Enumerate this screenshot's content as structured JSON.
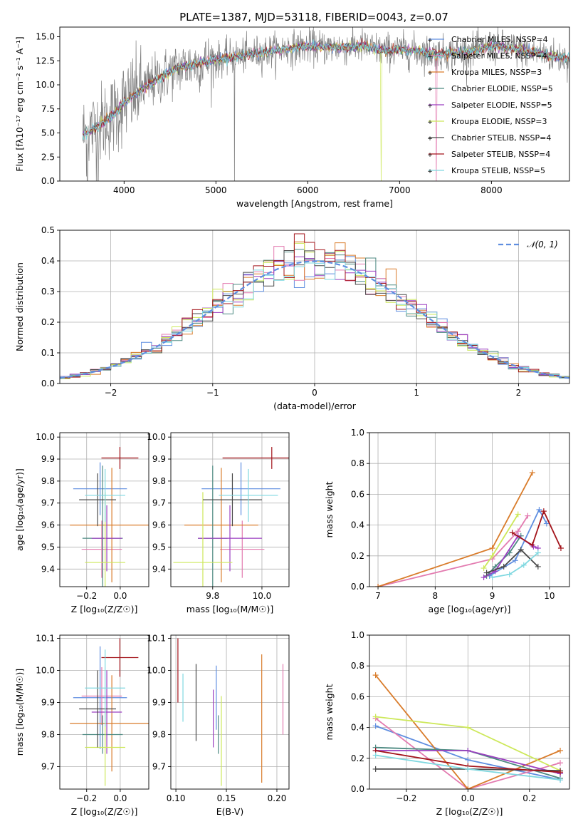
{
  "figure_title": "PLATE=1387, MJD=53118, FIBERID=0043, z=0.07",
  "colors": {
    "chabrier_miles": "#5f8ee0",
    "salpeter_miles": "#e37bb0",
    "kroupa_miles": "#d97c2b",
    "chabrier_elodie": "#4d8a82",
    "salpeter_elodie": "#9b3fc0",
    "kroupa_elodie": "#cde85a",
    "chabrier_stelib": "#4a4a4a",
    "salpeter_stelib": "#a3141b",
    "kroupa_stelib": "#7fd8e0",
    "data_spectrum": "#808080",
    "normal_curve": "#5f8ee0"
  },
  "chart_data": [
    {
      "id": "spectrum",
      "type": "line",
      "title": "PLATE=1387, MJD=53118, FIBERID=0043, z=0.07",
      "xlabel": "wavelength [Angstrom, rest frame]",
      "ylabel": "Flux [fλ10⁻¹⁷ erg cm⁻² s⁻¹ A⁻¹]",
      "xlim": [
        3300,
        8850
      ],
      "ylim": [
        0,
        16
      ],
      "xticks": [
        4000,
        5000,
        6000,
        7000,
        8000
      ],
      "yticks": [
        0.0,
        2.5,
        5.0,
        7.5,
        10.0,
        12.5,
        15.0
      ],
      "grid": false,
      "legend_position": "right",
      "legend": [
        "Chabrier MILES, NSSP=4",
        "Salpeter MILES, NSSP=4",
        "Kroupa MILES, NSSP=3",
        "Chabrier ELODIE, NSSP=5",
        "Salpeter ELODIE, NSSP=5",
        "Kroupa ELODIE, NSSP=3",
        "Chabrier STELIB, NSSP=4",
        "Salpeter STELIB, NSSP=4",
        "Kroupa STELIB, NSSP=5"
      ],
      "continuum": {
        "x": [
          3550,
          3700,
          3900,
          4000,
          4200,
          4400,
          4600,
          4800,
          5000,
          5200,
          5400,
          5600,
          5800,
          6000,
          6200,
          6400,
          6600,
          6800,
          7000,
          7200,
          7400,
          7600,
          7800,
          8000,
          8200,
          8400,
          8600,
          8800
        ],
        "y": [
          4.8,
          5.6,
          7.0,
          8.2,
          9.6,
          10.8,
          11.8,
          12.2,
          12.6,
          12.9,
          13.2,
          13.5,
          13.8,
          14.0,
          13.9,
          13.9,
          14.0,
          13.6,
          13.6,
          13.5,
          13.2,
          13.3,
          13.5,
          14.0,
          13.8,
          13.5,
          13.1,
          12.8
        ]
      }
    },
    {
      "id": "residuals",
      "type": "bar",
      "xlabel": "(data-model)/error",
      "ylabel": "Normed distribution",
      "xlim": [
        -2.5,
        2.5
      ],
      "ylim": [
        0,
        0.5
      ],
      "xticks": [
        -2,
        -1,
        0,
        1,
        2
      ],
      "yticks": [
        0.0,
        0.1,
        0.2,
        0.3,
        0.4,
        0.5
      ],
      "grid": true,
      "legend_position": "top-right",
      "legend": [
        "𝒩(0, 1)"
      ],
      "bin_width": 0.1,
      "bin_start": -2.5
    },
    {
      "id": "age-vs-z",
      "type": "scatter",
      "xlabel": "Z [log₁₀(Z/Z☉)]",
      "ylabel": "age  [log₁₀(age/yr)]",
      "xlim": [
        -0.36,
        0.17
      ],
      "ylim": [
        9.32,
        10.02
      ],
      "xticks": [
        -0.2,
        0.0
      ],
      "yticks": [
        9.4,
        9.5,
        9.6,
        9.7,
        9.8,
        9.9,
        10.0
      ],
      "grid": true,
      "points": [
        {
          "model": "chabrier_miles",
          "x": -0.12,
          "xerr": 0.16,
          "y": 9.765,
          "yerr": 0.12
        },
        {
          "model": "salpeter_miles",
          "x": -0.11,
          "xerr": 0.12,
          "y": 9.49,
          "yerr": 0.13
        },
        {
          "model": "kroupa_miles",
          "x": -0.05,
          "xerr": 0.25,
          "y": 9.6,
          "yerr": 0.26
        },
        {
          "model": "chabrier_elodie",
          "x": -0.105,
          "xerr": 0.12,
          "y": 9.54,
          "yerr": 0.33
        },
        {
          "model": "salpeter_elodie",
          "x": -0.08,
          "xerr": 0.09,
          "y": 9.54,
          "yerr": 0.15
        },
        {
          "model": "kroupa_elodie",
          "x": -0.09,
          "xerr": 0.12,
          "y": 9.43,
          "yerr": 0.32
        },
        {
          "model": "chabrier_stelib",
          "x": -0.135,
          "xerr": 0.11,
          "y": 9.715,
          "yerr": 0.12
        },
        {
          "model": "salpeter_stelib",
          "x": -0.002,
          "xerr": 0.11,
          "y": 9.905,
          "yerr": 0.05
        },
        {
          "model": "kroupa_stelib",
          "x": -0.09,
          "xerr": 0.12,
          "y": 9.735,
          "yerr": 0.12
        }
      ]
    },
    {
      "id": "age-vs-mass",
      "type": "scatter",
      "xlabel": "mass [log₁₀(M/M☉)]",
      "ylabel": "",
      "xlim": [
        9.63,
        10.11
      ],
      "ylim": [
        9.32,
        10.02
      ],
      "xticks": [
        9.8,
        10.0
      ],
      "yticks": [
        9.4,
        9.5,
        9.6,
        9.7,
        9.8,
        9.9,
        10.0
      ],
      "grid": true,
      "points": [
        {
          "model": "chabrier_miles",
          "x": 9.915,
          "xerr": 0.16,
          "y": 9.765,
          "yerr": 0.12
        },
        {
          "model": "salpeter_miles",
          "x": 9.92,
          "xerr": 0.09,
          "y": 9.49,
          "yerr": 0.13
        },
        {
          "model": "kroupa_miles",
          "x": 9.835,
          "xerr": 0.15,
          "y": 9.6,
          "yerr": 0.26
        },
        {
          "model": "chabrier_elodie",
          "x": 9.8,
          "xerr": 0.06,
          "y": 9.54,
          "yerr": 0.33
        },
        {
          "model": "salpeter_elodie",
          "x": 9.87,
          "xerr": 0.13,
          "y": 9.54,
          "yerr": 0.15
        },
        {
          "model": "kroupa_elodie",
          "x": 9.76,
          "xerr": 0.12,
          "y": 9.43,
          "yerr": 0.32
        },
        {
          "model": "chabrier_stelib",
          "x": 9.88,
          "xerr": 0.12,
          "y": 9.715,
          "yerr": 0.12
        },
        {
          "model": "salpeter_stelib",
          "x": 10.04,
          "xerr": 0.2,
          "y": 9.905,
          "yerr": 0.05
        },
        {
          "model": "kroupa_stelib",
          "x": 9.945,
          "xerr": 0.12,
          "y": 9.735,
          "yerr": 0.12
        }
      ]
    },
    {
      "id": "massweight-vs-age",
      "type": "line",
      "xlabel": "age  [log₁₀(age/yr)]",
      "ylabel": "mass weight",
      "xlim": [
        6.85,
        10.35
      ],
      "ylim": [
        0,
        1.0
      ],
      "xticks": [
        7,
        8,
        9,
        10
      ],
      "yticks": [
        0.0,
        0.2,
        0.4,
        0.6,
        0.8,
        1.0
      ],
      "grid": true,
      "series": [
        {
          "model": "chabrier_miles",
          "x": [
            8.95,
            9.4,
            9.82,
            9.95
          ],
          "y": [
            0.07,
            0.17,
            0.5,
            0.41
          ]
        },
        {
          "model": "salpeter_miles",
          "x": [
            7.0,
            9.0,
            9.45,
            9.62
          ],
          "y": [
            0.0,
            0.18,
            0.36,
            0.46
          ]
        },
        {
          "model": "kroupa_miles",
          "x": [
            7.0,
            9.0,
            9.7
          ],
          "y": [
            0.0,
            0.25,
            0.74
          ]
        },
        {
          "model": "chabrier_elodie",
          "x": [
            8.9,
            9.05,
            9.3,
            9.5
          ],
          "y": [
            0.07,
            0.13,
            0.22,
            0.33
          ]
        },
        {
          "model": "salpeter_elodie",
          "x": [
            8.85,
            9.05,
            9.45,
            9.72,
            9.8
          ],
          "y": [
            0.06,
            0.1,
            0.33,
            0.26,
            0.25
          ]
        },
        {
          "model": "kroupa_elodie",
          "x": [
            8.85,
            9.0,
            9.45
          ],
          "y": [
            0.12,
            0.2,
            0.47
          ]
        },
        {
          "model": "chabrier_stelib",
          "x": [
            8.9,
            9.2,
            9.5,
            9.8
          ],
          "y": [
            0.09,
            0.13,
            0.24,
            0.13
          ]
        },
        {
          "model": "salpeter_stelib",
          "x": [
            9.35,
            9.7,
            9.9,
            10.2
          ],
          "y": [
            0.35,
            0.27,
            0.49,
            0.25
          ]
        },
        {
          "model": "kroupa_stelib",
          "x": [
            9.0,
            9.3,
            9.55,
            9.8
          ],
          "y": [
            0.06,
            0.08,
            0.14,
            0.22
          ]
        }
      ]
    },
    {
      "id": "mass-vs-z",
      "type": "scatter",
      "xlabel": "Z [log₁₀(Z/Z☉)]",
      "ylabel": "mass [log₁₀(M/M☉)]",
      "xlim": [
        -0.36,
        0.17
      ],
      "ylim": [
        9.63,
        10.11
      ],
      "xticks": [
        -0.2,
        0.0
      ],
      "yticks": [
        9.7,
        9.8,
        9.9,
        10.0,
        10.1
      ],
      "grid": true,
      "points": [
        {
          "model": "chabrier_miles",
          "x": -0.12,
          "xerr": 0.16,
          "y": 9.915,
          "yerr": 0.16
        },
        {
          "model": "salpeter_miles",
          "x": -0.11,
          "xerr": 0.12,
          "y": 9.92,
          "yerr": 0.09
        },
        {
          "model": "kroupa_miles",
          "x": -0.05,
          "xerr": 0.25,
          "y": 9.835,
          "yerr": 0.15
        },
        {
          "model": "chabrier_elodie",
          "x": -0.105,
          "xerr": 0.12,
          "y": 9.8,
          "yerr": 0.06
        },
        {
          "model": "salpeter_elodie",
          "x": -0.08,
          "xerr": 0.09,
          "y": 9.87,
          "yerr": 0.13
        },
        {
          "model": "kroupa_elodie",
          "x": -0.09,
          "xerr": 0.12,
          "y": 9.76,
          "yerr": 0.12
        },
        {
          "model": "chabrier_stelib",
          "x": -0.135,
          "xerr": 0.11,
          "y": 9.88,
          "yerr": 0.12
        },
        {
          "model": "salpeter_stelib",
          "x": -0.002,
          "xerr": 0.11,
          "y": 10.04,
          "yerr": 0.06
        },
        {
          "model": "kroupa_stelib",
          "x": -0.09,
          "xerr": 0.12,
          "y": 9.945,
          "yerr": 0.12
        }
      ]
    },
    {
      "id": "mass-vs-ebv",
      "type": "scatter",
      "xlabel": "E(B-V)",
      "ylabel": "",
      "xlim": [
        0.095,
        0.212
      ],
      "ylim": [
        9.63,
        10.11
      ],
      "xticks": [
        0.1,
        0.15,
        0.2
      ],
      "yticks": [
        9.7,
        9.8,
        9.9,
        10.0,
        10.1
      ],
      "grid": true,
      "points": [
        {
          "model": "chabrier_miles",
          "x": 0.14,
          "xerr": 0.0,
          "y": 9.915,
          "yerr": 0.1
        },
        {
          "model": "salpeter_miles",
          "x": 0.206,
          "xerr": 0.0,
          "y": 9.91,
          "yerr": 0.11
        },
        {
          "model": "kroupa_miles",
          "x": 0.185,
          "xerr": 0.0,
          "y": 9.85,
          "yerr": 0.2
        },
        {
          "model": "chabrier_elodie",
          "x": 0.142,
          "xerr": 0.0,
          "y": 9.8,
          "yerr": 0.06
        },
        {
          "model": "salpeter_elodie",
          "x": 0.137,
          "xerr": 0.0,
          "y": 9.85,
          "yerr": 0.09
        },
        {
          "model": "kroupa_elodie",
          "x": 0.145,
          "xerr": 0.0,
          "y": 9.78,
          "yerr": 0.14
        },
        {
          "model": "chabrier_stelib",
          "x": 0.12,
          "xerr": 0.0,
          "y": 9.9,
          "yerr": 0.12
        },
        {
          "model": "salpeter_stelib",
          "x": 0.102,
          "xerr": 0.0,
          "y": 10.0,
          "yerr": 0.1
        },
        {
          "model": "kroupa_stelib",
          "x": 0.107,
          "xerr": 0.0,
          "y": 9.915,
          "yerr": 0.075
        }
      ]
    },
    {
      "id": "massweight-vs-z",
      "type": "line",
      "xlabel": "Z [log₁₀(Z/Z☉)]",
      "ylabel": "mass weight",
      "xlim": [
        -0.32,
        0.33
      ],
      "ylim": [
        0,
        1.0
      ],
      "xticks": [
        -0.2,
        0.0,
        0.2
      ],
      "yticks": [
        0.0,
        0.2,
        0.4,
        0.6,
        0.8,
        1.0
      ],
      "grid": true,
      "series": [
        {
          "model": "chabrier_miles",
          "x": [
            -0.3,
            0.0,
            0.3
          ],
          "y": [
            0.41,
            0.19,
            0.06
          ]
        },
        {
          "model": "salpeter_miles",
          "x": [
            -0.3,
            0.0,
            0.3
          ],
          "y": [
            0.46,
            0.0,
            0.17
          ]
        },
        {
          "model": "kroupa_miles",
          "x": [
            -0.3,
            0.0,
            0.3
          ],
          "y": [
            0.74,
            0.0,
            0.25
          ]
        },
        {
          "model": "chabrier_elodie",
          "x": [
            -0.3,
            0.0,
            0.3
          ],
          "y": [
            0.27,
            0.25,
            0.07
          ]
        },
        {
          "model": "salpeter_elodie",
          "x": [
            -0.3,
            0.0,
            0.3
          ],
          "y": [
            0.25,
            0.25,
            0.1
          ]
        },
        {
          "model": "kroupa_elodie",
          "x": [
            -0.3,
            0.0,
            0.3
          ],
          "y": [
            0.47,
            0.4,
            0.12
          ]
        },
        {
          "model": "chabrier_stelib",
          "x": [
            -0.3,
            0.0,
            0.3
          ],
          "y": [
            0.13,
            0.13,
            0.12
          ]
        },
        {
          "model": "salpeter_stelib",
          "x": [
            -0.3,
            0.0,
            0.3
          ],
          "y": [
            0.25,
            0.15,
            0.11
          ]
        },
        {
          "model": "kroupa_stelib",
          "x": [
            -0.3,
            0.0,
            0.3
          ],
          "y": [
            0.22,
            0.13,
            0.06
          ]
        }
      ]
    }
  ]
}
